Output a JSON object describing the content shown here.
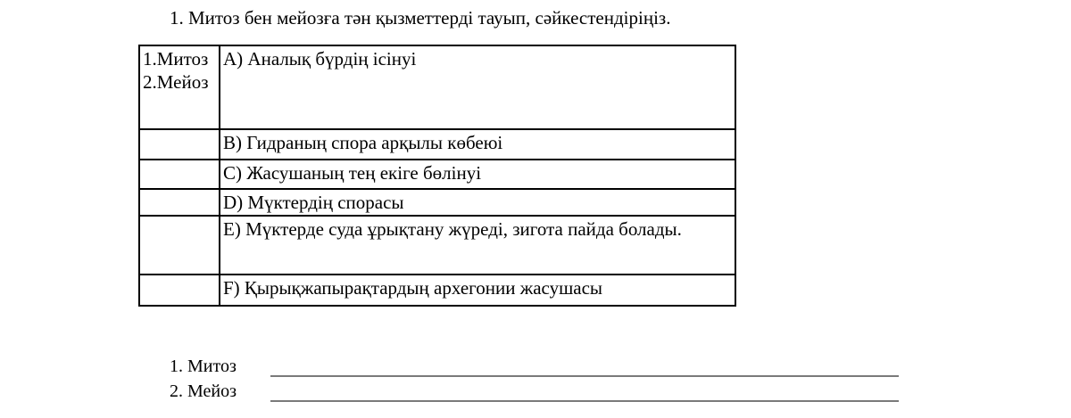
{
  "question": {
    "title": "1. Митоз бен мейозға тән қызметтерді тауып, сәйкестендіріңіз."
  },
  "table": {
    "left_items": [
      "1.Митоз",
      "2.Мейоз"
    ],
    "options": [
      "A) Аналық бүрдің ісінуі",
      "B) Гидраның спора арқылы көбеюі",
      "C) Жасушаның тең екіге бөлінуі",
      "D) Мүктердің спорасы",
      "E) Мүктерде суда ұрықтану жүреді, зигота пайда болады.",
      "F) Қырықжапырақтардың архегонии жасушасы"
    ]
  },
  "answers": [
    {
      "label": "1. Митоз",
      "value": ""
    },
    {
      "label": "2. Мейоз",
      "value": ""
    }
  ],
  "colors": {
    "text": "#000000",
    "table_border": "#000000",
    "underline": "#7a7a7a",
    "background": "#ffffff"
  }
}
